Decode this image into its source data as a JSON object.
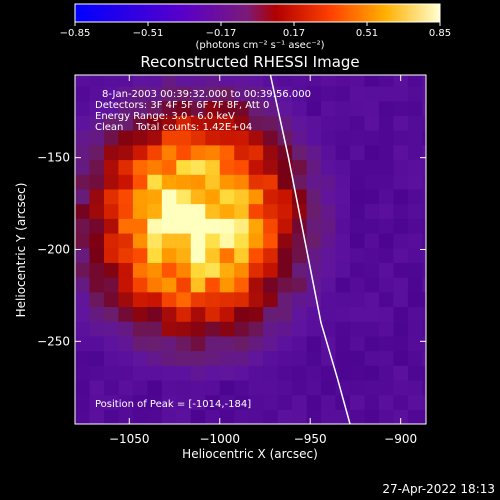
{
  "colorbar": {
    "ticks": [
      "-0.85",
      "-0.51",
      "-0.17",
      "0.17",
      "0.51",
      "0.85"
    ],
    "unit_label": "(photons cm⁻² s⁻¹ asec⁻²)"
  },
  "chart_data": {
    "type": "heatmap",
    "title": "Reconstructed RHESSI Image",
    "xlabel": "Heliocentric X (arcsec)",
    "ylabel": "Heliocentric Y (arcsec)",
    "xlim": [
      -1080,
      -886
    ],
    "ylim": [
      -295,
      -105
    ],
    "x_ticks": [
      "−1050",
      "−1000",
      "−950",
      "−900"
    ],
    "y_ticks": [
      "−150",
      "−200",
      "−250"
    ],
    "color_range": [
      -0.85,
      0.85
    ],
    "limb_curve": [
      [
        -972,
        -105
      ],
      [
        -962,
        -150
      ],
      [
        -952,
        -200
      ],
      [
        -944,
        -240
      ],
      [
        -935,
        -270
      ],
      [
        -928,
        -295
      ]
    ],
    "peak": [
      -1014,
      -184
    ],
    "annotations": [
      "8-Jan-2003 00:39:32.000 to 00:39:56.000",
      "Detectors: 3F 4F 5F 6F 7F 8F, Att 0",
      "Energy Range: 3.0 - 6.0 keV",
      "Clean    Total counts: 1.42E+04"
    ],
    "peak_label": "Position of Peak = [-1014,-184]"
  },
  "timestamp": "27-Apr-2022 18:13"
}
